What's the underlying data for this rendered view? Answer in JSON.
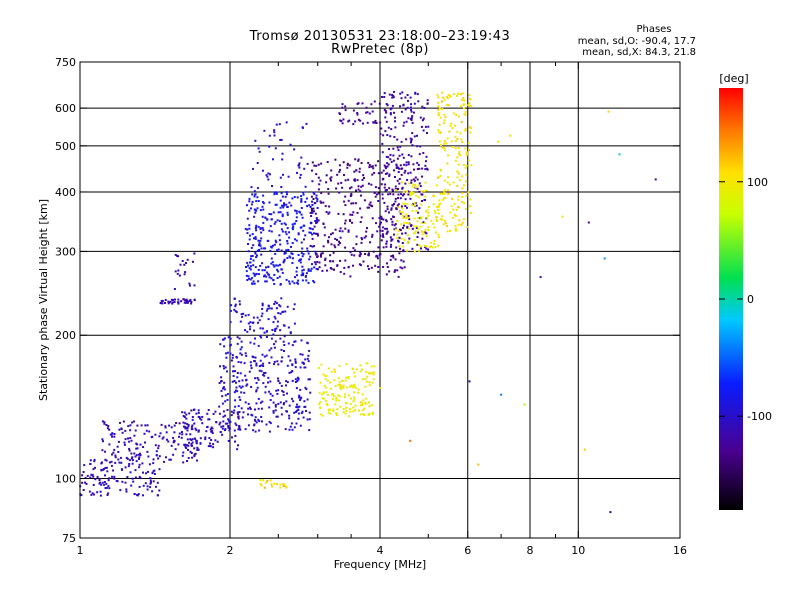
{
  "chart_data": {
    "type": "scatter",
    "title": "Tromsø 20130531 23:18:00–23:19:43",
    "subtitle": "RwPretec (8p)",
    "xlabel": "Frequency [MHz]",
    "ylabel": "Stationary phase Virtual Height [km]",
    "x_scale": "log",
    "y_scale": "log",
    "xlim": [
      1,
      16
    ],
    "ylim": [
      75,
      750
    ],
    "x_ticks": [
      "1",
      "2",
      "4",
      "6",
      "8",
      "10",
      "16"
    ],
    "x_minor_ticks": [
      2.5,
      3,
      3.5,
      5,
      7,
      9
    ],
    "x_gridlines": [
      2,
      4,
      6,
      8,
      10
    ],
    "y_ticks": [
      "75",
      "100",
      "200",
      "300",
      "400",
      "500",
      "600",
      "750"
    ],
    "y_gridlines": [
      100,
      200,
      300,
      400,
      500,
      600
    ],
    "grid": true,
    "stats": {
      "heading": "Phases",
      "line_o": "mean, sd,O: -90.4, 17.7",
      "line_x": "mean, sd,X:  84.3, 21.8"
    },
    "colorbar": {
      "label": "[deg]",
      "range": [
        -180,
        180
      ],
      "ticks": [
        "100",
        "0",
        "-100"
      ],
      "tick_values": [
        100,
        0,
        -100
      ]
    },
    "clusters": [
      {
        "f": [
          1.0,
          1.45
        ],
        "h": [
          92,
          110
        ],
        "phase": -105,
        "n": 130
      },
      {
        "f": [
          1.1,
          1.75
        ],
        "h": [
          108,
          132
        ],
        "phase": -110,
        "n": 160
      },
      {
        "f": [
          1.6,
          2.1
        ],
        "h": [
          115,
          140
        ],
        "phase": -108,
        "n": 120
      },
      {
        "f": [
          1.9,
          2.9
        ],
        "h": [
          125,
          200
        ],
        "phase": -100,
        "n": 330
      },
      {
        "f": [
          2.0,
          2.7
        ],
        "h": [
          200,
          240
        ],
        "phase": -95,
        "n": 80
      },
      {
        "f": [
          3.0,
          3.9
        ],
        "h": [
          135,
          175
        ],
        "phase": 95,
        "n": 160
      },
      {
        "f": [
          2.3,
          2.6
        ],
        "h": [
          95,
          100
        ],
        "phase": 110,
        "n": 20
      },
      {
        "f": [
          1.45,
          1.7
        ],
        "h": [
          233,
          238
        ],
        "phase": -110,
        "n": 40
      },
      {
        "f": [
          1.55,
          1.7
        ],
        "h": [
          245,
          300
        ],
        "phase": -115,
        "n": 20
      },
      {
        "f": [
          2.15,
          3.0
        ],
        "h": [
          255,
          400
        ],
        "phase": -85,
        "n": 360
      },
      {
        "f": [
          2.2,
          2.9
        ],
        "h": [
          400,
          560
        ],
        "phase": -95,
        "n": 50
      },
      {
        "f": [
          2.9,
          4.5
        ],
        "h": [
          265,
          470
        ],
        "phase": -130,
        "n": 340
      },
      {
        "f": [
          3.3,
          4.1
        ],
        "h": [
          555,
          620
        ],
        "phase": -125,
        "n": 40
      },
      {
        "f": [
          4.0,
          5.0
        ],
        "h": [
          300,
          650
        ],
        "phase": -120,
        "n": 260
      },
      {
        "f": [
          4.3,
          5.3
        ],
        "h": [
          300,
          420
        ],
        "phase": 95,
        "n": 120
      },
      {
        "f": [
          5.2,
          6.1
        ],
        "h": [
          330,
          650
        ],
        "phase": 105,
        "n": 190
      }
    ],
    "scatter_points": [
      {
        "f": 6.3,
        "h": 107,
        "phase": 120
      },
      {
        "f": 6.9,
        "h": 510,
        "phase": 95
      },
      {
        "f": 7.3,
        "h": 525,
        "phase": 90
      },
      {
        "f": 7.8,
        "h": 143,
        "phase": 60
      },
      {
        "f": 8.4,
        "h": 265,
        "phase": -110
      },
      {
        "f": 9.3,
        "h": 355,
        "phase": 110
      },
      {
        "f": 10.3,
        "h": 115,
        "phase": 115
      },
      {
        "f": 10.5,
        "h": 345,
        "phase": -125
      },
      {
        "f": 11.3,
        "h": 290,
        "phase": -35
      },
      {
        "f": 11.5,
        "h": 590,
        "phase": 115
      },
      {
        "f": 11.6,
        "h": 85,
        "phase": -140
      },
      {
        "f": 12.1,
        "h": 480,
        "phase": -10
      },
      {
        "f": 14.3,
        "h": 425,
        "phase": -130
      },
      {
        "f": 6.05,
        "h": 160,
        "phase": -110
      },
      {
        "f": 4.0,
        "h": 155,
        "phase": 110
      },
      {
        "f": 4.6,
        "h": 120,
        "phase": 150
      },
      {
        "f": 7.0,
        "h": 150,
        "phase": -40
      }
    ]
  }
}
